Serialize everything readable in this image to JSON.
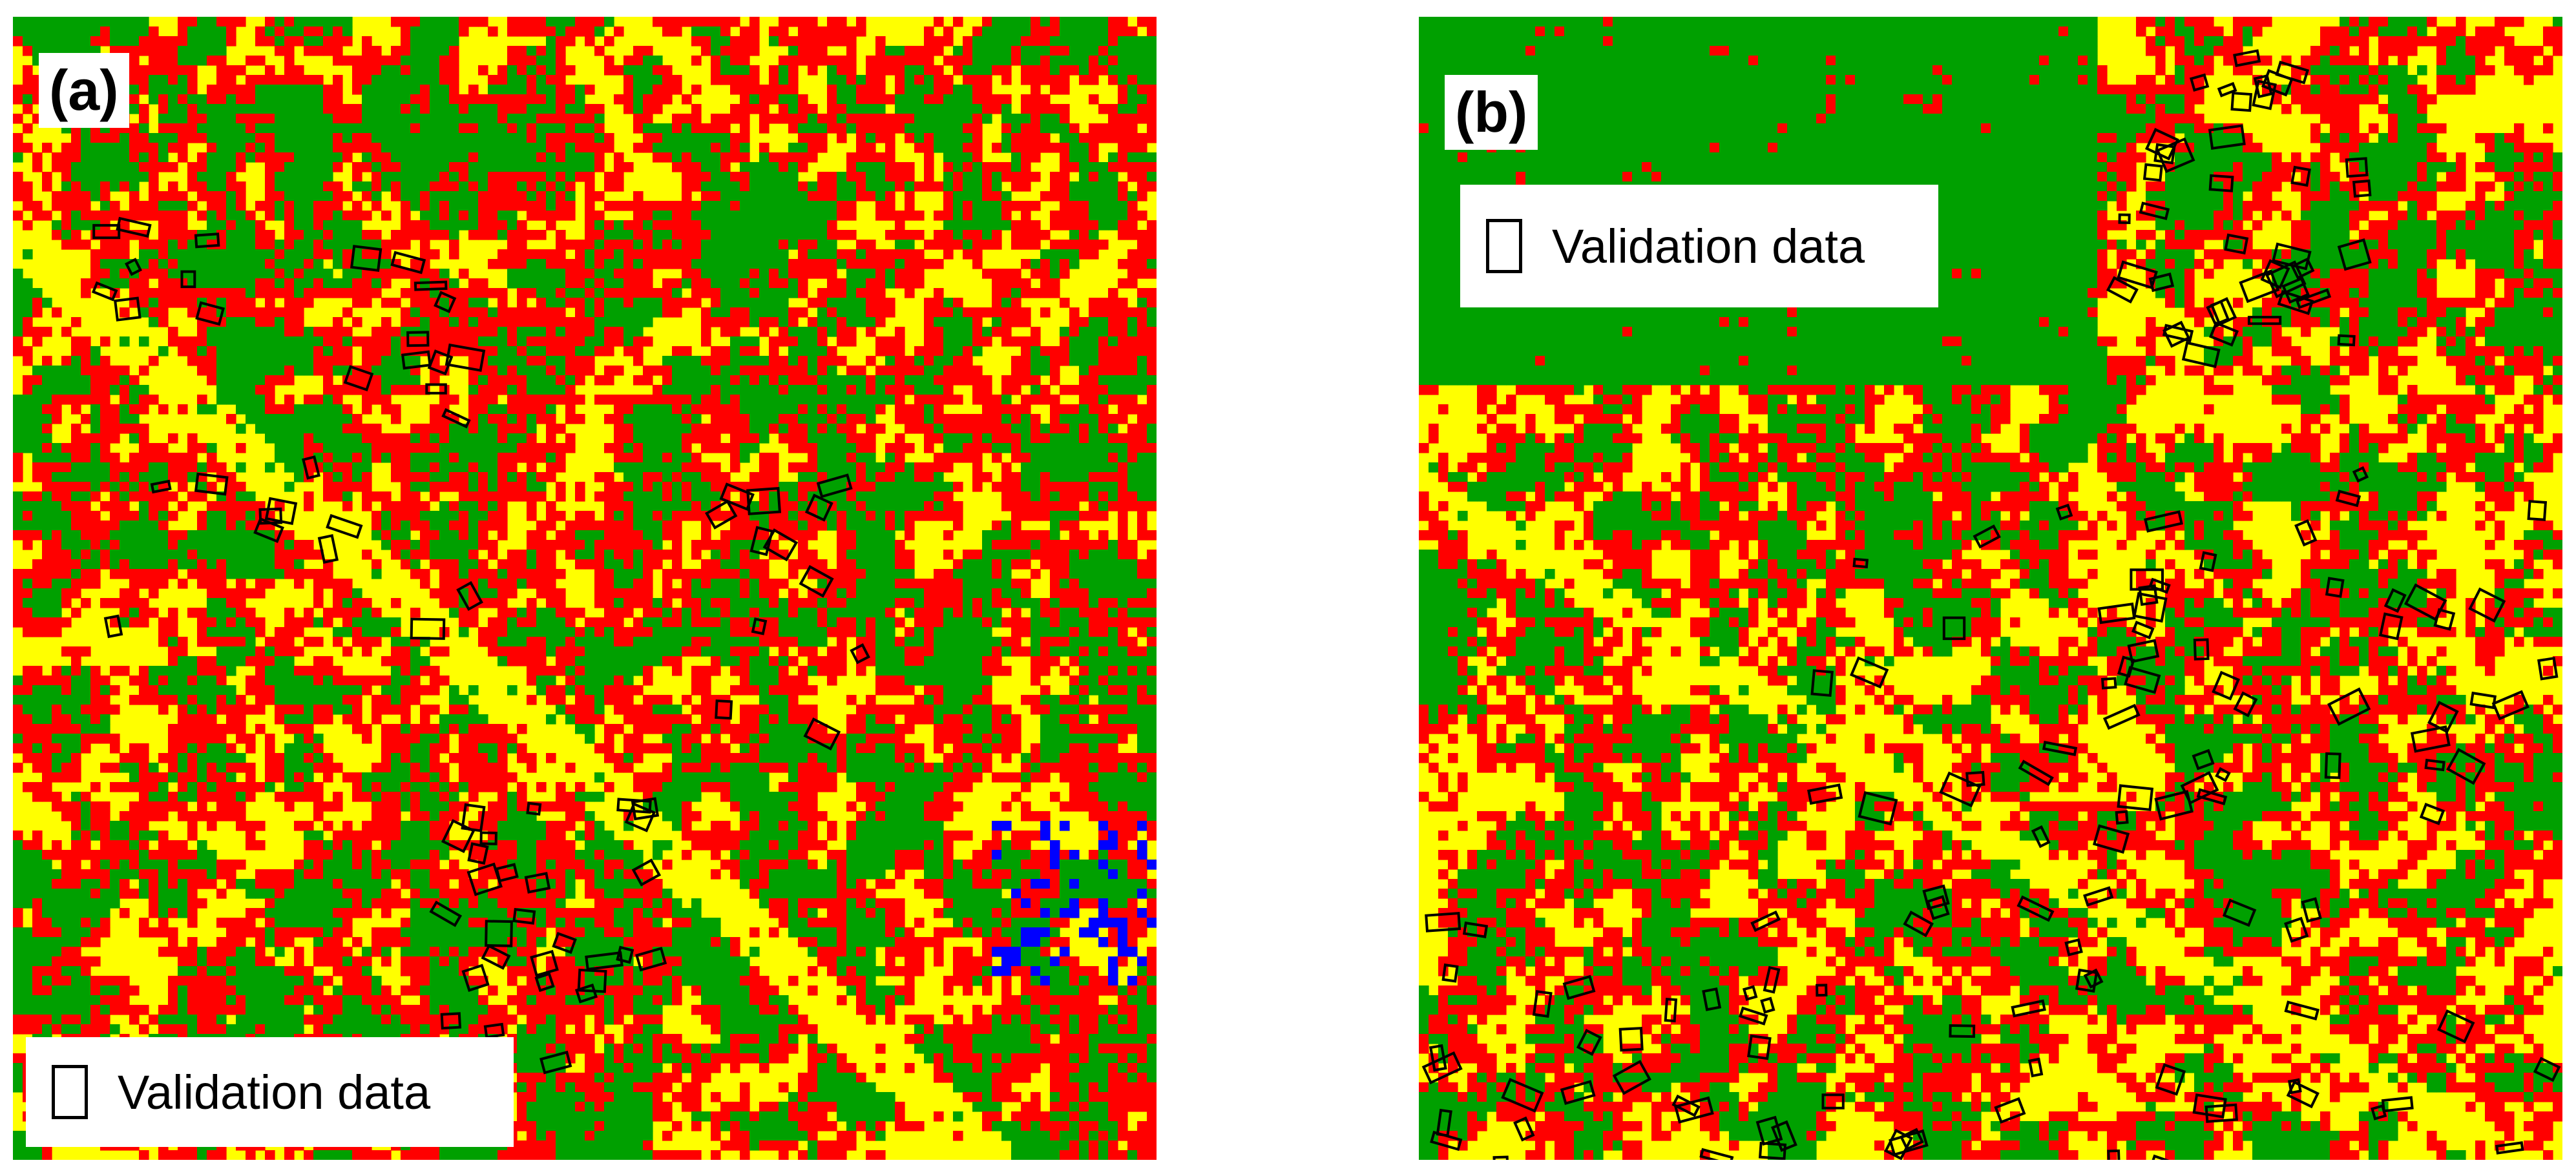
{
  "colors": {
    "class_1": "#ffff00",
    "class_2": "#ff0000",
    "class_3": "#00a000",
    "class_4": "#0000ff",
    "validation_outline": "#000000"
  },
  "panels": [
    {
      "label": "(a)",
      "legend_text": "Validation data"
    },
    {
      "label": "(b)",
      "legend_text": "Validation data"
    }
  ]
}
